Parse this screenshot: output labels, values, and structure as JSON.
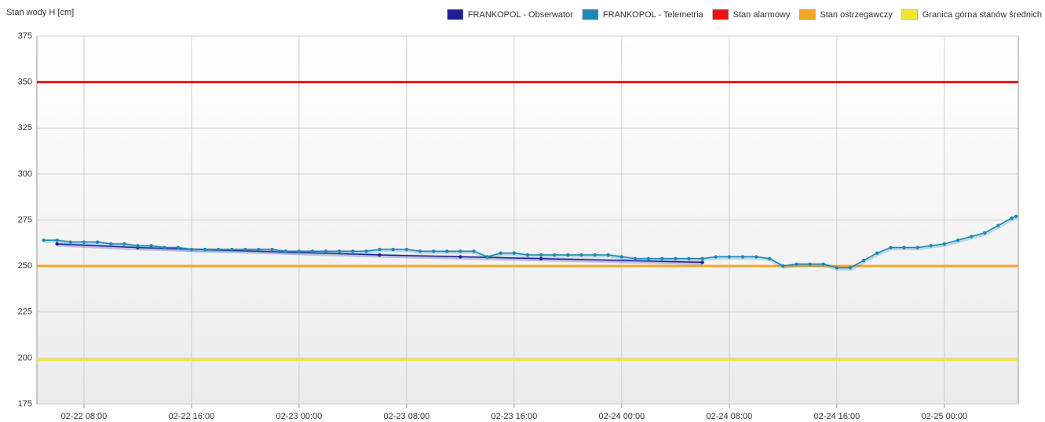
{
  "chart_data": {
    "type": "line",
    "ylabel": "Stan wody H [cm]",
    "ylim": [
      175,
      375
    ],
    "yticks": [
      175,
      200,
      225,
      250,
      275,
      300,
      325,
      350,
      375
    ],
    "xlim": [
      "02-22 04:30",
      "02-25 05:30"
    ],
    "xticks": [
      "02-22 08:00",
      "02-22 16:00",
      "02-23 00:00",
      "02-23 08:00",
      "02-23 16:00",
      "02-24 00:00",
      "02-24 08:00",
      "02-24 16:00",
      "02-25 00:00"
    ],
    "grid": true,
    "legend": "top-right",
    "series": [
      {
        "name": "FRANKOPOL - Obserwator",
        "color": "#1f1f99",
        "x": [
          "02-22 06:00",
          "02-22 12:00",
          "02-23 06:00",
          "02-23 12:00",
          "02-23 18:00",
          "02-24 06:00"
        ],
        "values": [
          262,
          260,
          256,
          255,
          254,
          252
        ]
      },
      {
        "name": "FRANKOPOL - Telemetria",
        "color": "#1f87b4",
        "x": [
          "02-22 05:00",
          "02-22 06:00",
          "02-22 07:00",
          "02-22 08:00",
          "02-22 09:00",
          "02-22 10:00",
          "02-22 11:00",
          "02-22 12:00",
          "02-22 13:00",
          "02-22 14:00",
          "02-22 15:00",
          "02-22 16:00",
          "02-22 17:00",
          "02-22 18:00",
          "02-22 19:00",
          "02-22 20:00",
          "02-22 21:00",
          "02-22 22:00",
          "02-22 23:00",
          "02-23 00:00",
          "02-23 01:00",
          "02-23 02:00",
          "02-23 03:00",
          "02-23 04:00",
          "02-23 05:00",
          "02-23 06:00",
          "02-23 07:00",
          "02-23 08:00",
          "02-23 09:00",
          "02-23 10:00",
          "02-23 11:00",
          "02-23 12:00",
          "02-23 13:00",
          "02-23 14:00",
          "02-23 15:00",
          "02-23 16:00",
          "02-23 17:00",
          "02-23 18:00",
          "02-23 19:00",
          "02-23 20:00",
          "02-23 21:00",
          "02-23 22:00",
          "02-23 23:00",
          "02-24 00:00",
          "02-24 01:00",
          "02-24 02:00",
          "02-24 03:00",
          "02-24 04:00",
          "02-24 05:00",
          "02-24 06:00",
          "02-24 07:00",
          "02-24 08:00",
          "02-24 09:00",
          "02-24 10:00",
          "02-24 11:00",
          "02-24 12:00",
          "02-24 13:00",
          "02-24 14:00",
          "02-24 15:00",
          "02-24 16:00",
          "02-24 17:00",
          "02-24 18:00",
          "02-24 19:00",
          "02-24 20:00",
          "02-24 21:00",
          "02-24 22:00",
          "02-24 23:00",
          "02-25 00:00",
          "02-25 01:00",
          "02-25 02:00",
          "02-25 03:00",
          "02-25 04:00",
          "02-25 05:00",
          "02-25 05:20"
        ],
        "values": [
          264,
          264,
          263,
          263,
          263,
          262,
          262,
          261,
          261,
          260,
          260,
          259,
          259,
          259,
          259,
          259,
          259,
          259,
          258,
          258,
          258,
          258,
          258,
          258,
          258,
          259,
          259,
          259,
          258,
          258,
          258,
          258,
          258,
          255,
          257,
          257,
          256,
          256,
          256,
          256,
          256,
          256,
          256,
          255,
          254,
          254,
          254,
          254,
          254,
          254,
          255,
          255,
          255,
          255,
          254,
          250,
          251,
          251,
          251,
          249,
          249,
          253,
          257,
          260,
          260,
          260,
          261,
          262,
          264,
          266,
          268,
          272,
          276,
          277
        ]
      }
    ],
    "lines": [
      {
        "name": "Stan alarmowy",
        "color": "#ee1111",
        "value": 350
      },
      {
        "name": "Stan ostrzegawczy",
        "color": "#f5a623",
        "value": 250
      },
      {
        "name": "Granica górna stanów średnich",
        "color": "#f2e633",
        "value": 199
      }
    ]
  }
}
